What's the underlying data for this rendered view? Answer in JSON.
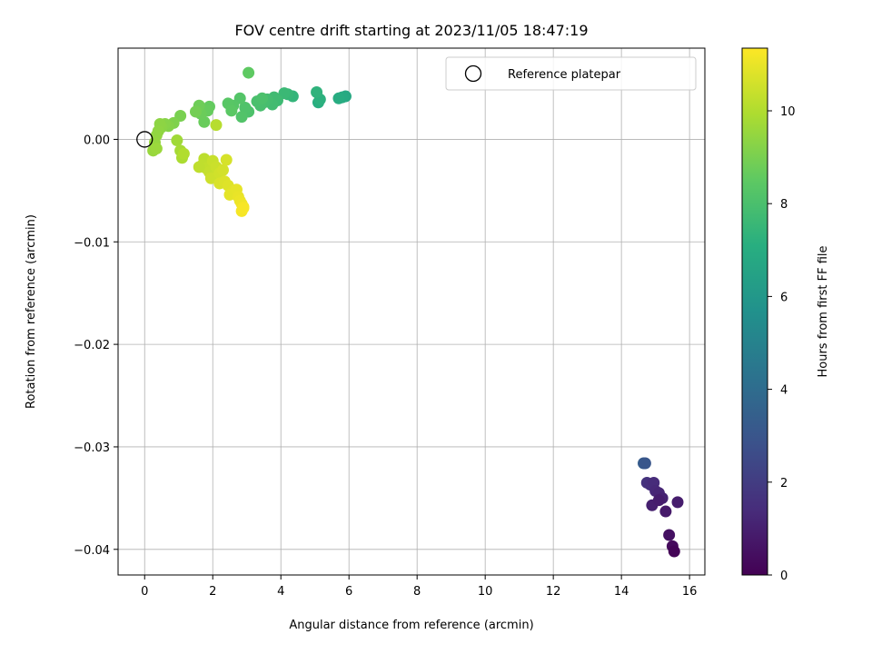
{
  "chart_data": {
    "type": "scatter",
    "title": "FOV centre drift starting at 2023/11/05 18:47:19",
    "xlabel": "Angular distance from reference (arcmin)",
    "ylabel": "Rotation from reference (arcmin)",
    "xlim": [
      -0.78,
      16.45
    ],
    "ylim": [
      -0.0425,
      0.0089
    ],
    "xticks": [
      0,
      2,
      4,
      6,
      8,
      10,
      12,
      14,
      16
    ],
    "xtick_labels": [
      "0",
      "2",
      "4",
      "6",
      "8",
      "10",
      "12",
      "14",
      "16"
    ],
    "yticks": [
      0.0,
      -0.01,
      -0.02,
      -0.03,
      -0.04
    ],
    "ytick_labels": [
      "0.00",
      "−0.01",
      "−0.02",
      "−0.03",
      "−0.04"
    ],
    "grid": true,
    "legend": {
      "position": "top-right",
      "entries": [
        "Reference platepar"
      ]
    },
    "colorbar": {
      "label": "Hours from first FF file",
      "colormap": "viridis",
      "range": [
        0,
        11.35
      ],
      "ticks": [
        0,
        2,
        4,
        6,
        8,
        10
      ],
      "tick_labels": [
        "0",
        "2",
        "4",
        "6",
        "8",
        "10"
      ]
    },
    "reference_point": {
      "x": 0,
      "y": 0.0
    },
    "points": [
      {
        "x": 14.65,
        "y": -0.0316,
        "c": 3.3
      },
      {
        "x": 14.7,
        "y": -0.0316,
        "c": 3.0
      },
      {
        "x": 14.75,
        "y": -0.0335,
        "c": 1.6
      },
      {
        "x": 14.85,
        "y": -0.0337,
        "c": 1.5
      },
      {
        "x": 14.95,
        "y": -0.0335,
        "c": 1.4
      },
      {
        "x": 15.0,
        "y": -0.0343,
        "c": 1.3
      },
      {
        "x": 15.1,
        "y": -0.0345,
        "c": 1.2
      },
      {
        "x": 15.2,
        "y": -0.035,
        "c": 1.1
      },
      {
        "x": 14.9,
        "y": -0.0357,
        "c": 1.0
      },
      {
        "x": 15.1,
        "y": -0.0352,
        "c": 0.9
      },
      {
        "x": 15.3,
        "y": -0.0363,
        "c": 0.8
      },
      {
        "x": 15.65,
        "y": -0.0354,
        "c": 0.9
      },
      {
        "x": 15.4,
        "y": -0.0386,
        "c": 0.5
      },
      {
        "x": 15.5,
        "y": -0.0397,
        "c": 0.3
      },
      {
        "x": 15.55,
        "y": -0.0402,
        "c": 0.1
      },
      {
        "x": 5.9,
        "y": 0.0042,
        "c": 6.8
      },
      {
        "x": 5.8,
        "y": 0.0041,
        "c": 6.9
      },
      {
        "x": 5.7,
        "y": 0.004,
        "c": 7.0
      },
      {
        "x": 5.1,
        "y": 0.0036,
        "c": 7.1
      },
      {
        "x": 5.15,
        "y": 0.0039,
        "c": 7.2
      },
      {
        "x": 5.05,
        "y": 0.0046,
        "c": 7.3
      },
      {
        "x": 4.35,
        "y": 0.0042,
        "c": 7.4
      },
      {
        "x": 4.2,
        "y": 0.0044,
        "c": 7.5
      },
      {
        "x": 4.1,
        "y": 0.0045,
        "c": 7.6
      },
      {
        "x": 3.9,
        "y": 0.0038,
        "c": 7.7
      },
      {
        "x": 3.8,
        "y": 0.0041,
        "c": 7.75
      },
      {
        "x": 3.75,
        "y": 0.0034,
        "c": 7.8
      },
      {
        "x": 3.6,
        "y": 0.0039,
        "c": 7.85
      },
      {
        "x": 3.5,
        "y": 0.0036,
        "c": 7.9
      },
      {
        "x": 3.4,
        "y": 0.0033,
        "c": 7.95
      },
      {
        "x": 3.3,
        "y": 0.0037,
        "c": 8.0
      },
      {
        "x": 3.45,
        "y": 0.004,
        "c": 8.05
      },
      {
        "x": 3.05,
        "y": 0.0027,
        "c": 8.1
      },
      {
        "x": 2.95,
        "y": 0.0031,
        "c": 8.15
      },
      {
        "x": 2.85,
        "y": 0.0022,
        "c": 8.2
      },
      {
        "x": 2.8,
        "y": 0.004,
        "c": 8.25
      },
      {
        "x": 2.6,
        "y": 0.0033,
        "c": 8.3
      },
      {
        "x": 2.45,
        "y": 0.0035,
        "c": 8.35
      },
      {
        "x": 2.55,
        "y": 0.0028,
        "c": 8.4
      },
      {
        "x": 3.05,
        "y": 0.0065,
        "c": 8.5
      },
      {
        "x": 1.9,
        "y": 0.0032,
        "c": 8.6
      },
      {
        "x": 1.85,
        "y": 0.0028,
        "c": 8.65
      },
      {
        "x": 1.75,
        "y": 0.0017,
        "c": 8.7
      },
      {
        "x": 1.65,
        "y": 0.0025,
        "c": 8.75
      },
      {
        "x": 1.6,
        "y": 0.0033,
        "c": 8.8
      },
      {
        "x": 1.5,
        "y": 0.0027,
        "c": 8.9
      },
      {
        "x": 1.05,
        "y": 0.0023,
        "c": 9.0
      },
      {
        "x": 0.85,
        "y": 0.0016,
        "c": 9.1
      },
      {
        "x": 0.7,
        "y": 0.0013,
        "c": 9.2
      },
      {
        "x": 0.6,
        "y": 0.0015,
        "c": 9.25
      },
      {
        "x": 0.5,
        "y": 0.0012,
        "c": 9.3
      },
      {
        "x": 0.45,
        "y": 0.0015,
        "c": 9.35
      },
      {
        "x": 0.4,
        "y": 0.0008,
        "c": 9.4
      },
      {
        "x": 0.35,
        "y": 0.0004,
        "c": 9.45
      },
      {
        "x": 0.3,
        "y": -0.0003,
        "c": 9.5
      },
      {
        "x": 0.25,
        "y": -0.0011,
        "c": 9.55
      },
      {
        "x": 0.35,
        "y": -0.0009,
        "c": 9.6
      },
      {
        "x": 0.95,
        "y": -0.0001,
        "c": 9.7
      },
      {
        "x": 1.05,
        "y": -0.0011,
        "c": 9.8
      },
      {
        "x": 1.1,
        "y": -0.0018,
        "c": 9.9
      },
      {
        "x": 1.15,
        "y": -0.0014,
        "c": 10.0
      },
      {
        "x": 2.1,
        "y": 0.0014,
        "c": 10.1
      },
      {
        "x": 1.75,
        "y": -0.0019,
        "c": 10.2
      },
      {
        "x": 1.7,
        "y": -0.0025,
        "c": 10.25
      },
      {
        "x": 1.8,
        "y": -0.0028,
        "c": 10.3
      },
      {
        "x": 1.9,
        "y": -0.0032,
        "c": 10.35
      },
      {
        "x": 2.0,
        "y": -0.0021,
        "c": 10.4
      },
      {
        "x": 2.1,
        "y": -0.0027,
        "c": 10.45
      },
      {
        "x": 1.95,
        "y": -0.0038,
        "c": 10.5
      },
      {
        "x": 2.2,
        "y": -0.0033,
        "c": 10.55
      },
      {
        "x": 2.3,
        "y": -0.003,
        "c": 10.6
      },
      {
        "x": 2.4,
        "y": -0.002,
        "c": 10.65
      },
      {
        "x": 2.2,
        "y": -0.0043,
        "c": 10.7
      },
      {
        "x": 2.35,
        "y": -0.0041,
        "c": 10.75
      },
      {
        "x": 2.45,
        "y": -0.0045,
        "c": 10.8
      },
      {
        "x": 2.6,
        "y": -0.005,
        "c": 10.85
      },
      {
        "x": 2.5,
        "y": -0.0054,
        "c": 10.9
      },
      {
        "x": 2.7,
        "y": -0.0049,
        "c": 10.95
      },
      {
        "x": 2.75,
        "y": -0.0056,
        "c": 11.0
      },
      {
        "x": 2.8,
        "y": -0.006,
        "c": 11.05
      },
      {
        "x": 2.85,
        "y": -0.0063,
        "c": 11.1
      },
      {
        "x": 2.9,
        "y": -0.0066,
        "c": 11.15
      },
      {
        "x": 2.85,
        "y": -0.007,
        "c": 11.2
      },
      {
        "x": 2.9,
        "y": -0.0067,
        "c": 11.25
      },
      {
        "x": 1.6,
        "y": -0.0027,
        "c": 10.25
      }
    ]
  }
}
